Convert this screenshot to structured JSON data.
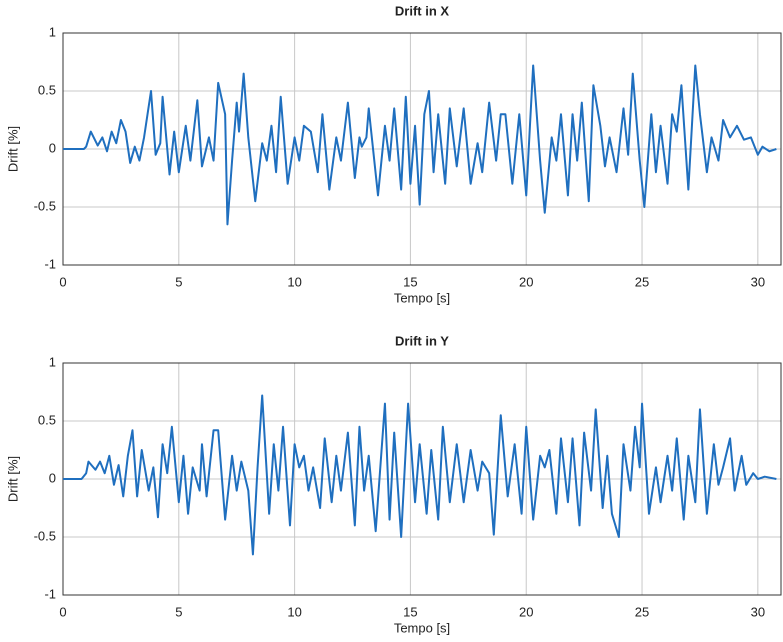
{
  "chart_data": [
    {
      "type": "line",
      "title": "Drift in X",
      "xlabel": "Tempo [s]",
      "ylabel": "Drift [%]",
      "color": "#1f6fbf",
      "grid": true,
      "xlim": [
        0,
        31
      ],
      "ylim": [
        -1,
        1
      ],
      "xticks": [
        0,
        5,
        10,
        15,
        20,
        25,
        30
      ],
      "yticks": [
        -1,
        -0.5,
        0,
        0.5,
        1
      ],
      "x": [
        0,
        0.9,
        1.0,
        1.2,
        1.5,
        1.7,
        1.9,
        2.1,
        2.3,
        2.5,
        2.7,
        2.9,
        3.1,
        3.3,
        3.5,
        3.8,
        4.0,
        4.2,
        4.3,
        4.6,
        4.8,
        5.0,
        5.3,
        5.5,
        5.8,
        6.0,
        6.3,
        6.5,
        6.7,
        7.0,
        7.1,
        7.3,
        7.5,
        7.6,
        7.8,
        8.0,
        8.3,
        8.6,
        8.8,
        9.0,
        9.2,
        9.4,
        9.7,
        10.0,
        10.2,
        10.4,
        10.7,
        11.0,
        11.2,
        11.5,
        11.8,
        12.0,
        12.3,
        12.6,
        12.8,
        12.9,
        13.1,
        13.2,
        13.6,
        13.9,
        14.1,
        14.3,
        14.6,
        14.8,
        15.0,
        15.2,
        15.4,
        15.6,
        15.8,
        16.0,
        16.2,
        16.5,
        16.7,
        17.0,
        17.3,
        17.6,
        17.9,
        18.1,
        18.4,
        18.7,
        18.9,
        19.1,
        19.4,
        19.7,
        20.0,
        20.3,
        20.6,
        20.8,
        21.1,
        21.3,
        21.5,
        21.8,
        22.0,
        22.2,
        22.4,
        22.7,
        22.9,
        23.2,
        23.4,
        23.6,
        23.9,
        24.2,
        24.4,
        24.6,
        24.9,
        25.1,
        25.4,
        25.6,
        25.8,
        26.1,
        26.3,
        26.5,
        26.7,
        27.0,
        27.3,
        27.5,
        27.8,
        28.0,
        28.3,
        28.5,
        28.8,
        29.1,
        29.4,
        29.7,
        30.0,
        30.2,
        30.5,
        30.8
      ],
      "values": [
        0,
        0,
        0.02,
        0.15,
        0.03,
        0.1,
        -0.02,
        0.15,
        0.05,
        0.25,
        0.15,
        -0.12,
        0.02,
        -0.1,
        0.1,
        0.5,
        -0.05,
        0.05,
        0.45,
        -0.22,
        0.15,
        -0.2,
        0.2,
        -0.1,
        0.42,
        -0.15,
        0.1,
        -0.1,
        0.57,
        0.3,
        -0.65,
        -0.1,
        0.4,
        0.15,
        0.65,
        0.1,
        -0.45,
        0.05,
        -0.1,
        0.2,
        -0.2,
        0.45,
        -0.3,
        0.1,
        -0.1,
        0.2,
        0.15,
        -0.2,
        0.3,
        -0.35,
        0.1,
        -0.1,
        0.4,
        -0.25,
        0.1,
        0.02,
        0.1,
        0.35,
        -0.4,
        0.2,
        -0.1,
        0.35,
        -0.35,
        0.45,
        -0.3,
        0.2,
        -0.48,
        0.3,
        0.5,
        -0.2,
        0.3,
        -0.3,
        0.35,
        -0.15,
        0.35,
        -0.3,
        0.05,
        -0.2,
        0.4,
        -0.1,
        0.3,
        0.3,
        -0.3,
        0.3,
        -0.4,
        0.72,
        -0.1,
        -0.55,
        0.1,
        -0.1,
        0.3,
        -0.4,
        0.3,
        -0.1,
        0.4,
        -0.45,
        0.55,
        0.2,
        -0.15,
        0.1,
        -0.2,
        0.35,
        -0.05,
        0.65,
        -0.1,
        -0.5,
        0.3,
        -0.2,
        0.2,
        -0.3,
        0.3,
        0.15,
        0.55,
        -0.35,
        0.72,
        0.3,
        -0.2,
        0.1,
        -0.1,
        0.25,
        0.1,
        0.2,
        0.08,
        0.1,
        -0.05,
        0.02,
        -0.02,
        0
      ]
    },
    {
      "type": "line",
      "title": "Drift in Y",
      "xlabel": "Tempo [s]",
      "ylabel": "Drift [%]",
      "color": "#1f6fbf",
      "grid": true,
      "xlim": [
        0,
        31
      ],
      "ylim": [
        -1,
        1
      ],
      "xticks": [
        0,
        5,
        10,
        15,
        20,
        25,
        30
      ],
      "yticks": [
        -1,
        -0.5,
        0,
        0.5,
        1
      ],
      "x": [
        0,
        0.8,
        1.0,
        1.1,
        1.4,
        1.6,
        1.8,
        2.0,
        2.2,
        2.4,
        2.6,
        2.8,
        3.0,
        3.2,
        3.4,
        3.7,
        3.9,
        4.1,
        4.3,
        4.5,
        4.7,
        5.0,
        5.2,
        5.4,
        5.6,
        5.9,
        6.0,
        6.2,
        6.5,
        6.7,
        7.0,
        7.3,
        7.5,
        7.7,
        8.0,
        8.2,
        8.4,
        8.6,
        8.9,
        9.1,
        9.3,
        9.5,
        9.8,
        10.0,
        10.2,
        10.4,
        10.6,
        10.8,
        11.1,
        11.3,
        11.6,
        11.8,
        12.0,
        12.3,
        12.6,
        12.8,
        13.0,
        13.2,
        13.5,
        13.9,
        14.1,
        14.3,
        14.6,
        14.9,
        15.2,
        15.4,
        15.7,
        15.9,
        16.2,
        16.4,
        16.7,
        17.0,
        17.3,
        17.6,
        17.9,
        18.1,
        18.4,
        18.6,
        18.9,
        19.2,
        19.5,
        19.8,
        20.0,
        20.3,
        20.6,
        20.8,
        21.0,
        21.3,
        21.5,
        21.8,
        22.0,
        22.3,
        22.5,
        22.8,
        23.0,
        23.3,
        23.5,
        23.7,
        24.0,
        24.2,
        24.5,
        24.7,
        24.9,
        25.0,
        25.3,
        25.6,
        25.8,
        26.1,
        26.3,
        26.5,
        26.8,
        27.0,
        27.3,
        27.5,
        27.8,
        28.1,
        28.3,
        28.5,
        28.8,
        29.0,
        29.3,
        29.5,
        29.8,
        30.0,
        30.3,
        30.8
      ],
      "values": [
        0,
        0,
        0.05,
        0.15,
        0.08,
        0.15,
        0.05,
        0.2,
        -0.05,
        0.12,
        -0.15,
        0.2,
        0.42,
        -0.15,
        0.25,
        -0.1,
        0.1,
        -0.33,
        0.3,
        0.05,
        0.45,
        -0.2,
        0.2,
        -0.3,
        0.1,
        -0.1,
        0.3,
        -0.15,
        0.42,
        0.42,
        -0.35,
        0.2,
        -0.1,
        0.15,
        -0.1,
        -0.65,
        0.1,
        0.72,
        -0.3,
        0.3,
        -0.1,
        0.45,
        -0.4,
        0.3,
        0.1,
        0.2,
        -0.1,
        0.1,
        -0.25,
        0.35,
        -0.2,
        0.2,
        -0.1,
        0.4,
        -0.4,
        0.45,
        -0.1,
        0.2,
        -0.45,
        0.65,
        -0.35,
        0.4,
        -0.5,
        0.65,
        -0.2,
        0.3,
        -0.3,
        0.25,
        -0.35,
        0.45,
        -0.2,
        0.3,
        -0.2,
        0.25,
        -0.1,
        0.15,
        0.05,
        -0.48,
        0.55,
        -0.15,
        0.3,
        -0.3,
        0.45,
        -0.35,
        0.2,
        0.1,
        0.25,
        -0.3,
        0.35,
        -0.2,
        0.35,
        -0.4,
        0.4,
        -0.1,
        0.6,
        -0.25,
        0.2,
        -0.3,
        -0.5,
        0.3,
        -0.1,
        0.45,
        0.1,
        0.65,
        -0.3,
        0.1,
        -0.2,
        0.2,
        -0.1,
        0.35,
        -0.35,
        0.2,
        -0.2,
        0.6,
        -0.3,
        0.3,
        -0.05,
        0.1,
        0.35,
        -0.1,
        0.2,
        -0.05,
        0.05,
        0,
        0.02,
        0
      ]
    }
  ]
}
